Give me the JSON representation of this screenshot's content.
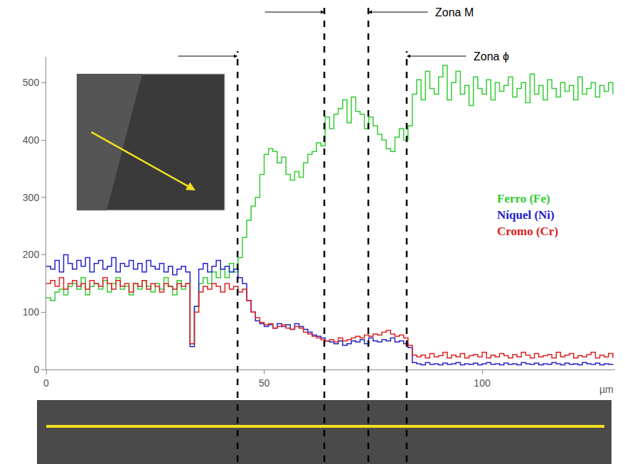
{
  "chart_data": {
    "type": "line",
    "x_label": "µm",
    "xlim": [
      0,
      130.5
    ],
    "xticks": [
      0,
      50,
      100
    ],
    "ylim": [
      0,
      545
    ],
    "yticks": [
      0,
      100,
      200,
      300,
      400,
      500
    ],
    "grid": false,
    "line_style": "step",
    "zone_lines": [
      43.9,
      63.8,
      73.9,
      82.7
    ],
    "annotations": [
      {
        "text": "Zona M",
        "x": 73.9
      },
      {
        "text": "Zona ϕ",
        "x": 82.7
      }
    ],
    "x": [
      0,
      1,
      2,
      3,
      4,
      5,
      6,
      7,
      8,
      9,
      10,
      11,
      12,
      13,
      14,
      15,
      16,
      17,
      18,
      19,
      20,
      21,
      22,
      23,
      24,
      25,
      26,
      27,
      28,
      29,
      30,
      31,
      32,
      33,
      34,
      35,
      36,
      37,
      38,
      39,
      40,
      41,
      42,
      43,
      44,
      45,
      46,
      47,
      48,
      49,
      50,
      51,
      52,
      53,
      54,
      55,
      56,
      57,
      58,
      59,
      60,
      61,
      62,
      63,
      64,
      65,
      66,
      67,
      68,
      69,
      70,
      71,
      72,
      73,
      74,
      75,
      76,
      77,
      78,
      79,
      80,
      81,
      82,
      83,
      84,
      85,
      86,
      87,
      88,
      89,
      90,
      91,
      92,
      93,
      94,
      95,
      96,
      97,
      98,
      99,
      100,
      101,
      102,
      103,
      104,
      105,
      106,
      107,
      108,
      109,
      110,
      111,
      112,
      113,
      114,
      115,
      116,
      117,
      118,
      119,
      120,
      121,
      122,
      123,
      124,
      125,
      126,
      127,
      128,
      129,
      130
    ],
    "series": [
      {
        "name": "Ferro (Fe)",
        "color": "#33cc33",
        "values": [
          125,
          120,
          135,
          140,
          130,
          145,
          150,
          140,
          160,
          130,
          145,
          150,
          140,
          155,
          135,
          150,
          160,
          140,
          145,
          130,
          150,
          140,
          155,
          145,
          135,
          150,
          140,
          160,
          145,
          130,
          155,
          140,
          150,
          45,
          110,
          150,
          160,
          150,
          170,
          160,
          175,
          160,
          185,
          170,
          195,
          230,
          260,
          285,
          300,
          340,
          375,
          385,
          380,
          360,
          370,
          340,
          330,
          345,
          335,
          360,
          375,
          380,
          395,
          390,
          440,
          420,
          445,
          455,
          470,
          430,
          475,
          450,
          445,
          420,
          440,
          425,
          410,
          400,
          385,
          380,
          405,
          420,
          400,
          425,
          480,
          505,
          470,
          520,
          490,
          480,
          510,
          530,
          470,
          500,
          520,
          480,
          495,
          460,
          510,
          490,
          480,
          505,
          470,
          500,
          485,
          495,
          510,
          475,
          490,
          500,
          465,
          515,
          480,
          495,
          470,
          505,
          490,
          475,
          500,
          485,
          495,
          470,
          510,
          480,
          490,
          500,
          475,
          495,
          485,
          500,
          480
        ]
      },
      {
        "name": "Níquel (Ni)",
        "color": "#2222cc",
        "values": [
          180,
          175,
          190,
          170,
          200,
          185,
          175,
          190,
          180,
          195,
          170,
          185,
          190,
          175,
          180,
          195,
          170,
          185,
          180,
          190,
          175,
          185,
          170,
          190,
          180,
          175,
          185,
          170,
          180,
          165,
          175,
          180,
          170,
          40,
          110,
          175,
          185,
          170,
          180,
          190,
          175,
          180,
          170,
          175,
          160,
          150,
          120,
          100,
          85,
          80,
          75,
          78,
          72,
          80,
          75,
          78,
          70,
          80,
          75,
          70,
          65,
          60,
          58,
          55,
          50,
          48,
          45,
          50,
          42,
          45,
          50,
          48,
          52,
          45,
          55,
          50,
          48,
          52,
          50,
          55,
          48,
          50,
          45,
          38,
          12,
          10,
          8,
          12,
          9,
          10,
          8,
          11,
          9,
          10,
          12,
          8,
          10,
          9,
          11,
          8,
          10,
          12,
          9,
          10,
          8,
          11,
          9,
          10,
          8,
          12,
          10,
          9,
          11,
          8,
          10,
          9,
          12,
          10,
          8,
          11,
          9,
          10,
          8,
          12,
          10,
          9,
          11,
          8,
          10,
          9,
          10
        ]
      },
      {
        "name": "Cromo (Cr)",
        "color": "#dd2222",
        "values": [
          150,
          155,
          145,
          160,
          140,
          150,
          155,
          145,
          150,
          140,
          155,
          150,
          145,
          160,
          150,
          140,
          155,
          145,
          150,
          135,
          150,
          145,
          155,
          140,
          150,
          145,
          135,
          150,
          145,
          140,
          150,
          145,
          150,
          45,
          100,
          135,
          145,
          140,
          150,
          145,
          135,
          150,
          140,
          145,
          135,
          140,
          120,
          100,
          90,
          82,
          78,
          80,
          72,
          75,
          78,
          72,
          70,
          75,
          72,
          65,
          62,
          58,
          55,
          52,
          50,
          52,
          48,
          55,
          50,
          52,
          55,
          58,
          55,
          60,
          58,
          62,
          60,
          65,
          68,
          62,
          58,
          60,
          55,
          42,
          25,
          22,
          25,
          20,
          28,
          22,
          24,
          30,
          20,
          25,
          22,
          28,
          20,
          24,
          26,
          22,
          30,
          20,
          25,
          22,
          28,
          24,
          20,
          26,
          22,
          30,
          25,
          20,
          28,
          22,
          24,
          26,
          20,
          30,
          22,
          25,
          28,
          20,
          24,
          22,
          26,
          30,
          20,
          25,
          22,
          28,
          20
        ]
      }
    ]
  }
}
